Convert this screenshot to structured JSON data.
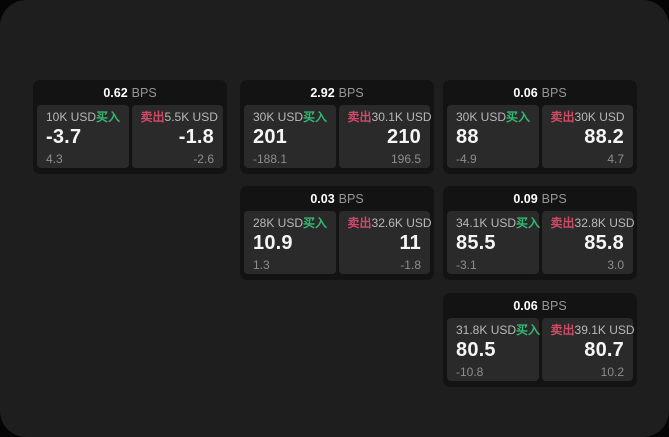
{
  "labels": {
    "bps_unit": "BPS",
    "buy": "买入",
    "sell": "卖出"
  },
  "colors": {
    "buy_green": "#34b873",
    "sell_red": "#d04a66",
    "window_bg": "#1e1e1e",
    "card_bg": "#131313",
    "panel_bg": "#2a2a2a"
  },
  "cards": [
    {
      "bps": "0.62",
      "buy": {
        "notional": "10K USD",
        "price": "-3.7",
        "sub": "4.3"
      },
      "sell": {
        "notional": "5.5K USD",
        "price": "-1.8",
        "sub": "-2.6"
      }
    },
    {
      "bps": "2.92",
      "buy": {
        "notional": "30K USD",
        "price": "201",
        "sub": "-188.1"
      },
      "sell": {
        "notional": "30.1K USD",
        "price": "210",
        "sub": "196.5"
      }
    },
    {
      "bps": "0.06",
      "buy": {
        "notional": "30K USD",
        "price": "88",
        "sub": "-4.9"
      },
      "sell": {
        "notional": "30K USD",
        "price": "88.2",
        "sub": "4.7"
      }
    },
    {
      "bps": "0.03",
      "buy": {
        "notional": "28K USD",
        "price": "10.9",
        "sub": "1.3"
      },
      "sell": {
        "notional": "32.6K USD",
        "price": "11",
        "sub": "-1.8"
      }
    },
    {
      "bps": "0.09",
      "buy": {
        "notional": "34.1K USD",
        "price": "85.5",
        "sub": "-3.1"
      },
      "sell": {
        "notional": "32.8K USD",
        "price": "85.8",
        "sub": "3.0"
      }
    },
    {
      "bps": "0.06",
      "buy": {
        "notional": "31.8K USD",
        "price": "80.5",
        "sub": "-10.8"
      },
      "sell": {
        "notional": "39.1K USD",
        "price": "80.7",
        "sub": "10.2"
      }
    }
  ]
}
